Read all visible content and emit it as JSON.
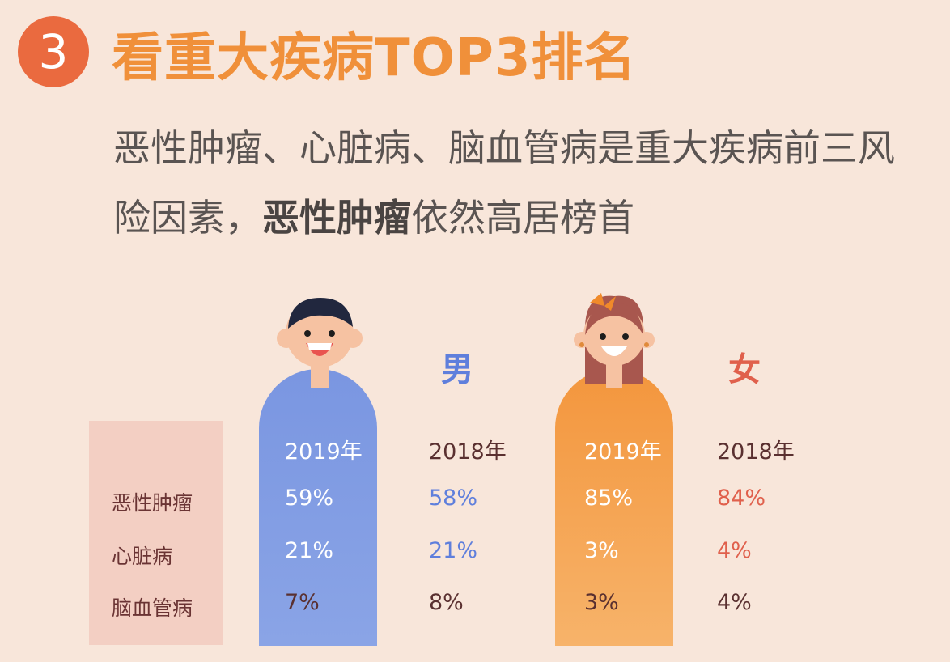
{
  "header": {
    "number": "3",
    "title": "看重大疾病TOP3排名"
  },
  "description": {
    "part1": "恶性肿瘤、心脏病、脑血管病是重大疾病前三风险因素，",
    "bold": "恶性肿瘤",
    "part2": "依然高居榜首"
  },
  "genders": {
    "male": "男",
    "female": "女"
  },
  "table": {
    "columns": [
      "2019年",
      "2018年",
      "2019年",
      "2018年"
    ],
    "rows": [
      {
        "label": "恶性肿瘤",
        "male_2019": "59%",
        "male_2018": "58%",
        "female_2019": "85%",
        "female_2018": "84%"
      },
      {
        "label": "心脏病",
        "male_2019": "21%",
        "male_2018": "21%",
        "female_2019": "3%",
        "female_2018": "4%"
      },
      {
        "label": "脑血管病",
        "male_2019": "7%",
        "male_2018": "8%",
        "female_2019": "3%",
        "female_2018": "4%"
      }
    ]
  },
  "colors": {
    "background": "#f8e6da",
    "title": "#f0903a",
    "badge": "#ea6a3f",
    "male": "#5f7fdc",
    "female": "#e0604c"
  }
}
